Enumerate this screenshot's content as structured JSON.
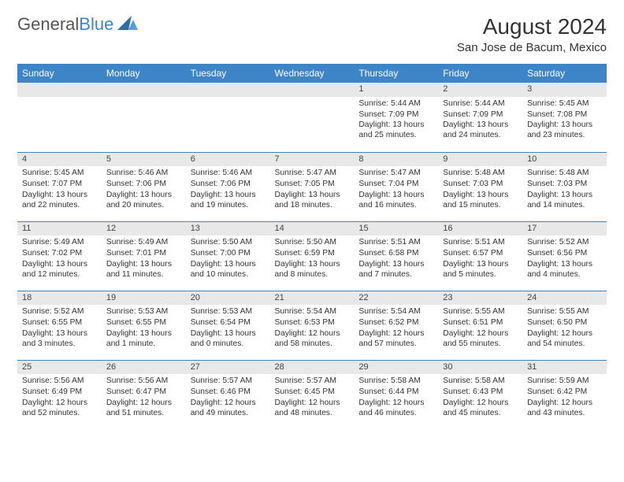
{
  "logo": {
    "text1": "General",
    "text2": "Blue"
  },
  "title": "August 2024",
  "location": "San Jose de Bacum, Mexico",
  "colors": {
    "header_bg": "#3d85c6",
    "header_text": "#ffffff",
    "daynum_bg": "#e8e8e8",
    "row_border": "#3d85c6"
  },
  "daynames": [
    "Sunday",
    "Monday",
    "Tuesday",
    "Wednesday",
    "Thursday",
    "Friday",
    "Saturday"
  ],
  "weeks": [
    [
      null,
      null,
      null,
      null,
      {
        "n": "1",
        "sr": "5:44 AM",
        "ss": "7:09 PM",
        "dl": "13 hours and 25 minutes."
      },
      {
        "n": "2",
        "sr": "5:44 AM",
        "ss": "7:09 PM",
        "dl": "13 hours and 24 minutes."
      },
      {
        "n": "3",
        "sr": "5:45 AM",
        "ss": "7:08 PM",
        "dl": "13 hours and 23 minutes."
      }
    ],
    [
      {
        "n": "4",
        "sr": "5:45 AM",
        "ss": "7:07 PM",
        "dl": "13 hours and 22 minutes."
      },
      {
        "n": "5",
        "sr": "5:46 AM",
        "ss": "7:06 PM",
        "dl": "13 hours and 20 minutes."
      },
      {
        "n": "6",
        "sr": "5:46 AM",
        "ss": "7:06 PM",
        "dl": "13 hours and 19 minutes."
      },
      {
        "n": "7",
        "sr": "5:47 AM",
        "ss": "7:05 PM",
        "dl": "13 hours and 18 minutes."
      },
      {
        "n": "8",
        "sr": "5:47 AM",
        "ss": "7:04 PM",
        "dl": "13 hours and 16 minutes."
      },
      {
        "n": "9",
        "sr": "5:48 AM",
        "ss": "7:03 PM",
        "dl": "13 hours and 15 minutes."
      },
      {
        "n": "10",
        "sr": "5:48 AM",
        "ss": "7:03 PM",
        "dl": "13 hours and 14 minutes."
      }
    ],
    [
      {
        "n": "11",
        "sr": "5:49 AM",
        "ss": "7:02 PM",
        "dl": "13 hours and 12 minutes."
      },
      {
        "n": "12",
        "sr": "5:49 AM",
        "ss": "7:01 PM",
        "dl": "13 hours and 11 minutes."
      },
      {
        "n": "13",
        "sr": "5:50 AM",
        "ss": "7:00 PM",
        "dl": "13 hours and 10 minutes."
      },
      {
        "n": "14",
        "sr": "5:50 AM",
        "ss": "6:59 PM",
        "dl": "13 hours and 8 minutes."
      },
      {
        "n": "15",
        "sr": "5:51 AM",
        "ss": "6:58 PM",
        "dl": "13 hours and 7 minutes."
      },
      {
        "n": "16",
        "sr": "5:51 AM",
        "ss": "6:57 PM",
        "dl": "13 hours and 5 minutes."
      },
      {
        "n": "17",
        "sr": "5:52 AM",
        "ss": "6:56 PM",
        "dl": "13 hours and 4 minutes."
      }
    ],
    [
      {
        "n": "18",
        "sr": "5:52 AM",
        "ss": "6:55 PM",
        "dl": "13 hours and 3 minutes."
      },
      {
        "n": "19",
        "sr": "5:53 AM",
        "ss": "6:55 PM",
        "dl": "13 hours and 1 minute."
      },
      {
        "n": "20",
        "sr": "5:53 AM",
        "ss": "6:54 PM",
        "dl": "13 hours and 0 minutes."
      },
      {
        "n": "21",
        "sr": "5:54 AM",
        "ss": "6:53 PM",
        "dl": "12 hours and 58 minutes."
      },
      {
        "n": "22",
        "sr": "5:54 AM",
        "ss": "6:52 PM",
        "dl": "12 hours and 57 minutes."
      },
      {
        "n": "23",
        "sr": "5:55 AM",
        "ss": "6:51 PM",
        "dl": "12 hours and 55 minutes."
      },
      {
        "n": "24",
        "sr": "5:55 AM",
        "ss": "6:50 PM",
        "dl": "12 hours and 54 minutes."
      }
    ],
    [
      {
        "n": "25",
        "sr": "5:56 AM",
        "ss": "6:49 PM",
        "dl": "12 hours and 52 minutes."
      },
      {
        "n": "26",
        "sr": "5:56 AM",
        "ss": "6:47 PM",
        "dl": "12 hours and 51 minutes."
      },
      {
        "n": "27",
        "sr": "5:57 AM",
        "ss": "6:46 PM",
        "dl": "12 hours and 49 minutes."
      },
      {
        "n": "28",
        "sr": "5:57 AM",
        "ss": "6:45 PM",
        "dl": "12 hours and 48 minutes."
      },
      {
        "n": "29",
        "sr": "5:58 AM",
        "ss": "6:44 PM",
        "dl": "12 hours and 46 minutes."
      },
      {
        "n": "30",
        "sr": "5:58 AM",
        "ss": "6:43 PM",
        "dl": "12 hours and 45 minutes."
      },
      {
        "n": "31",
        "sr": "5:59 AM",
        "ss": "6:42 PM",
        "dl": "12 hours and 43 minutes."
      }
    ]
  ],
  "labels": {
    "sunrise": "Sunrise:",
    "sunset": "Sunset:",
    "daylight": "Daylight:"
  }
}
